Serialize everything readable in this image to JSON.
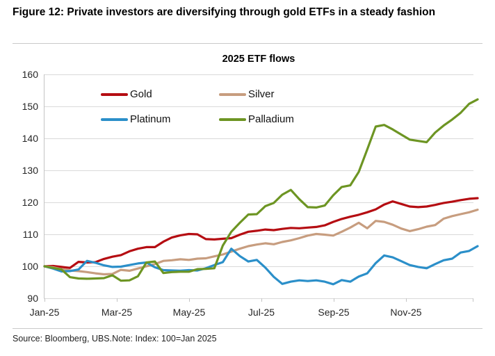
{
  "figure": {
    "title": "Figure 12: Private investors are diversifying through gold ETFs in a steady fashion"
  },
  "chart_data": {
    "type": "line",
    "title": "2025 ETF flows",
    "xlabel": "",
    "ylabel": "",
    "index_note": "Index: 100=Jan 2025",
    "ylim": [
      90,
      160
    ],
    "y_ticks": [
      90,
      100,
      110,
      120,
      130,
      140,
      150,
      160
    ],
    "x_tick_labels": [
      "Jan-25",
      "Mar-25",
      "May-25",
      "Jul-25",
      "Sep-25",
      "Nov-25"
    ],
    "x_sampling": "weekly samples, Jan 2025 through Dec 2025 (52 points per series)",
    "grid": "horizontal",
    "legend_position": "top-left, 2 columns",
    "series": [
      {
        "name": "Gold",
        "color": "#b50d12",
        "values": [
          100,
          100.1,
          99.8,
          99.5,
          101.4,
          101.2,
          101.3,
          102.3,
          103,
          103.5,
          104.7,
          105.5,
          106,
          106,
          107.7,
          109,
          109.7,
          110.1,
          110,
          108.5,
          108.4,
          108.6,
          108.8,
          109.9,
          110.8,
          111.1,
          111.5,
          111.3,
          111.7,
          112,
          111.9,
          112.1,
          112.3,
          112.8,
          113.9,
          114.8,
          115.5,
          116.1,
          116.9,
          117.8,
          119.3,
          120.3,
          119.5,
          118.7,
          118.5,
          118.7,
          119.2,
          119.8,
          120.2,
          120.7,
          121.1,
          121.3
        ]
      },
      {
        "name": "Silver",
        "color": "#c79d7f",
        "values": [
          100,
          99.7,
          99.1,
          98.7,
          98.5,
          98.2,
          97.8,
          97.5,
          97.6,
          98.9,
          98.6,
          99.3,
          100,
          100.7,
          101.7,
          101.9,
          102.2,
          102,
          102.4,
          102.5,
          103.1,
          103.7,
          104.6,
          105.5,
          106.3,
          106.8,
          107.2,
          106.9,
          107.6,
          108.1,
          108.8,
          109.6,
          110.1,
          109.9,
          109.6,
          110.8,
          112.1,
          113.6,
          111.9,
          114.2,
          113.9,
          113,
          111.8,
          111,
          111.6,
          112.4,
          112.9,
          114.9,
          115.7,
          116.3,
          116.9,
          117.7
        ]
      },
      {
        "name": "Platinum",
        "color": "#2b8fc9",
        "values": [
          100,
          99.3,
          98.4,
          98.5,
          99,
          101.7,
          101.1,
          100.3,
          99.8,
          99.9,
          100.4,
          100.9,
          101.2,
          99.7,
          98.8,
          98.7,
          98.6,
          98.8,
          98.7,
          99.4,
          100.4,
          101.3,
          105.5,
          103.2,
          101.5,
          102,
          99.6,
          96.7,
          94.5,
          95.2,
          95.6,
          95.4,
          95.6,
          95.2,
          94.4,
          95.7,
          95.2,
          96.8,
          97.8,
          101,
          103.4,
          102.8,
          101.6,
          100.4,
          99.8,
          99.4,
          100.7,
          101.9,
          102.4,
          104.3,
          104.8,
          106.3
        ]
      },
      {
        "name": "Palladium",
        "color": "#6d9523",
        "values": [
          100,
          99.5,
          99,
          96.6,
          96.2,
          96.1,
          96.2,
          96.3,
          97.2,
          95.5,
          95.6,
          96.9,
          101.2,
          101.5,
          97.9,
          98.2,
          98.3,
          98.3,
          99.1,
          99.2,
          99.4,
          106.5,
          110.8,
          113.6,
          116.2,
          116.3,
          118.8,
          119.8,
          122.4,
          123.9,
          121,
          118.5,
          118.4,
          119,
          122.2,
          124.8,
          125.3,
          129.5,
          136.5,
          143.7,
          144.2,
          142.8,
          141.2,
          139.6,
          139.2,
          138.8,
          141.8,
          144,
          145.9,
          148,
          150.8,
          152.2
        ]
      }
    ]
  },
  "footer": {
    "source": "Source: Bloomberg, UBS.Note: Index: 100=Jan 2025"
  }
}
